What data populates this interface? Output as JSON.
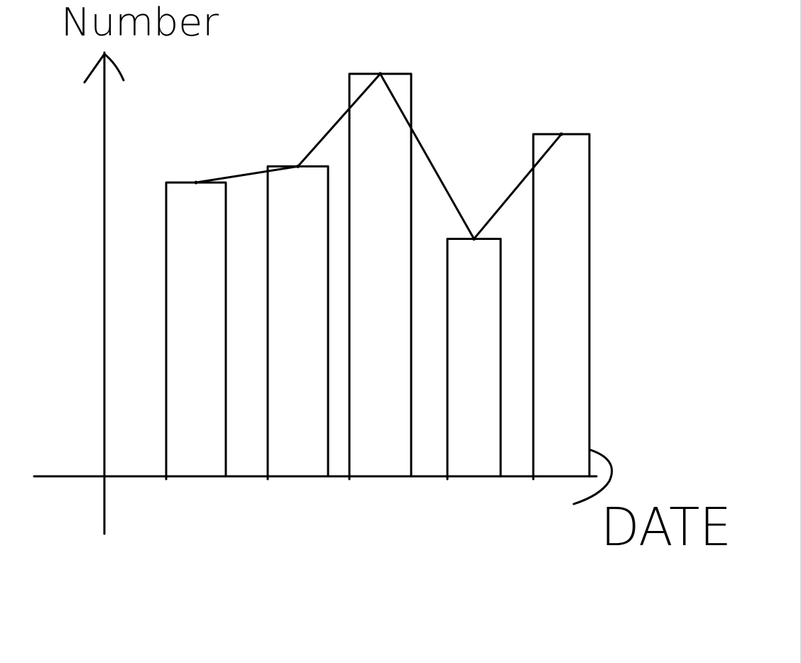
{
  "chart_data": {
    "type": "bar",
    "style": "hand-drawn",
    "ylabel": "Number",
    "xlabel": "DATE",
    "categories": [
      "",
      "",
      "",
      "",
      ""
    ],
    "values": [
      73,
      77,
      100,
      59,
      85
    ],
    "ylim": [
      0,
      100
    ],
    "overlay_line": true,
    "grid": false,
    "legend": "none",
    "colors": {
      "ink": "#000000",
      "background": "#ffffff"
    }
  }
}
